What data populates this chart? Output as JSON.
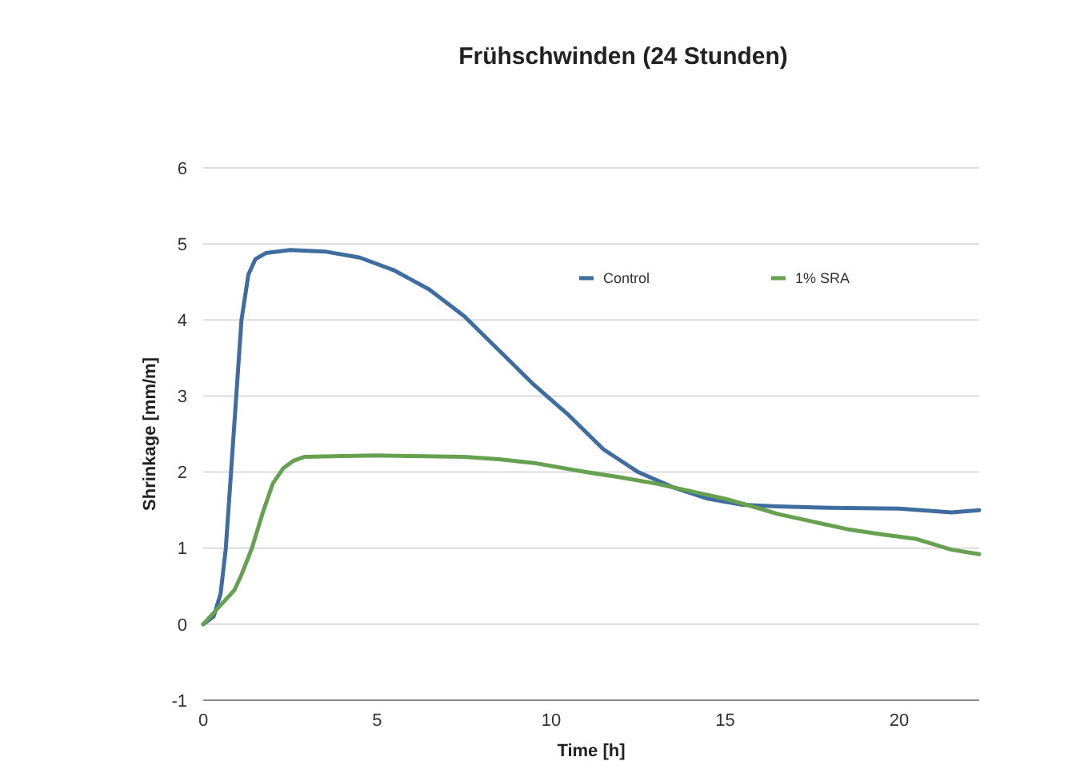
{
  "chart_data": {
    "type": "line",
    "title": "Frühschwinden (24 Stunden)",
    "xlabel": "Time [h]",
    "ylabel": "Shrinkage [mm/m]",
    "xlim": [
      0,
      22.3
    ],
    "xticks": [
      0,
      5,
      10,
      15,
      20
    ],
    "ylim": [
      -1,
      6
    ],
    "yticks": [
      -1,
      0,
      1,
      2,
      3,
      4,
      5,
      6
    ],
    "grid": "y",
    "legend": "top right",
    "marker": "none",
    "line_style": "solid",
    "series": [
      {
        "name": "Control",
        "color": "#3f6d9f",
        "x": [
          0,
          0.3,
          0.5,
          0.65,
          0.8,
          0.95,
          1.1,
          1.3,
          1.5,
          1.8,
          2.5,
          3.5,
          4.5,
          5.5,
          6.5,
          7.5,
          8.5,
          9.5,
          10.5,
          11.5,
          12.5,
          13.5,
          14.5,
          15.5,
          16.5,
          18,
          20,
          21.5,
          22.3
        ],
        "values": [
          0,
          0.1,
          0.4,
          1.0,
          2.0,
          3.0,
          4.0,
          4.6,
          4.8,
          4.88,
          4.92,
          4.9,
          4.82,
          4.65,
          4.4,
          4.05,
          3.6,
          3.15,
          2.75,
          2.3,
          2.0,
          1.8,
          1.65,
          1.57,
          1.55,
          1.53,
          1.52,
          1.47,
          1.5
        ]
      },
      {
        "name": "1% SRA",
        "color": "#66a150",
        "x": [
          0,
          0.3,
          0.6,
          0.9,
          1.1,
          1.4,
          1.7,
          2.0,
          2.3,
          2.6,
          2.9,
          4,
          5,
          6,
          7.5,
          8.5,
          9.5,
          11,
          12,
          13,
          14,
          15,
          16,
          16.5,
          17.5,
          18.5,
          19.5,
          20.5,
          21.5,
          22.3
        ],
        "values": [
          0,
          0.15,
          0.3,
          0.45,
          0.65,
          1.0,
          1.45,
          1.85,
          2.05,
          2.15,
          2.2,
          2.21,
          2.22,
          2.21,
          2.2,
          2.17,
          2.12,
          2.0,
          1.93,
          1.85,
          1.75,
          1.65,
          1.52,
          1.45,
          1.35,
          1.25,
          1.18,
          1.12,
          0.98,
          0.92
        ]
      }
    ]
  }
}
